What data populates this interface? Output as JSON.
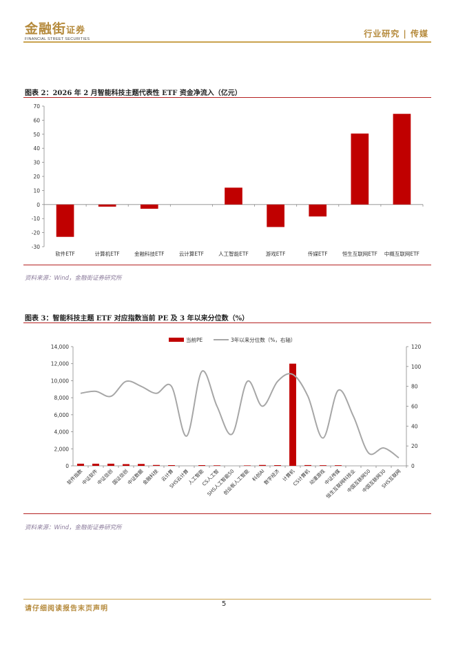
{
  "header": {
    "logo_cn": "金融街",
    "logo_cn_suffix": "证券",
    "logo_en": "FINANCIAL STREET SECURITIES",
    "section": "行业研究 | 传媒"
  },
  "figure2": {
    "title": "图表 2：2026 年 2 月智能科技主题代表性 ETF 资金净流入（亿元）",
    "source": "资料来源：Wind，金融街证券研究所"
  },
  "figure3": {
    "title": "图表 3：智能科技主题 ETF 对应指数当前 PE 及 3 年以来分位数（%）",
    "source": "资料来源：Wind，金融街证券研究所"
  },
  "footer": {
    "disclaimer": "请仔细阅读报告末页声明",
    "page": "5"
  },
  "chart_data": [
    {
      "type": "bar",
      "title": "",
      "categories": [
        "软件ETF",
        "计算机ETF",
        "金融科技ETF",
        "云计算ETF",
        "人工智能ETF",
        "游戏ETF",
        "传媒ETF",
        "恒生互联网ETF",
        "中概互联网ETF"
      ],
      "values": [
        -23,
        -1.5,
        -3,
        0,
        12,
        -16,
        -8.5,
        50.5,
        64.5
      ],
      "ylim": [
        -30,
        70
      ],
      "yticks": [
        "-30",
        "-20",
        "-10",
        "0",
        "10",
        "20",
        "30",
        "40",
        "50",
        "60",
        "70"
      ],
      "color": "#c00000"
    },
    {
      "type": "bar+line",
      "legend": [
        "当前PE",
        "3年以来分位数（%，右轴）"
      ],
      "categories": [
        "软件指数",
        "中证软件",
        "中证信创",
        "国证信创",
        "中证数据",
        "金融科技",
        "云计算",
        "SHS云计算",
        "人工智能",
        "CS人工智",
        "SHS人工智能50",
        "创业板人工智能",
        "科创AI",
        "数字经济",
        "计算机",
        "CS计算机",
        "动漫游戏",
        "中证传媒",
        "恒生互联网科技业",
        "中国互联网50",
        "中国互联网30",
        "SHS互联网"
      ],
      "pe": [
        250,
        250,
        250,
        200,
        220,
        100,
        80,
        0,
        80,
        60,
        0,
        50,
        100,
        80,
        12000,
        90,
        70,
        70,
        0,
        0,
        0,
        0
      ],
      "percentile": [
        73,
        75,
        70,
        85,
        80,
        73,
        80,
        30,
        95,
        60,
        32,
        85,
        60,
        85,
        92,
        70,
        28,
        76,
        50,
        13,
        18,
        8
      ],
      "ylim_left": [
        0,
        14000
      ],
      "ylim_right": [
        0,
        120
      ],
      "yticks_left": [
        "0",
        "2,000",
        "4,000",
        "6,000",
        "8,000",
        "10,000",
        "12,000",
        "14,000"
      ],
      "yticks_right": [
        "0",
        "20",
        "40",
        "60",
        "80",
        "100",
        "120"
      ],
      "bar_color": "#c00000",
      "line_color": "#a6a6a6"
    }
  ]
}
